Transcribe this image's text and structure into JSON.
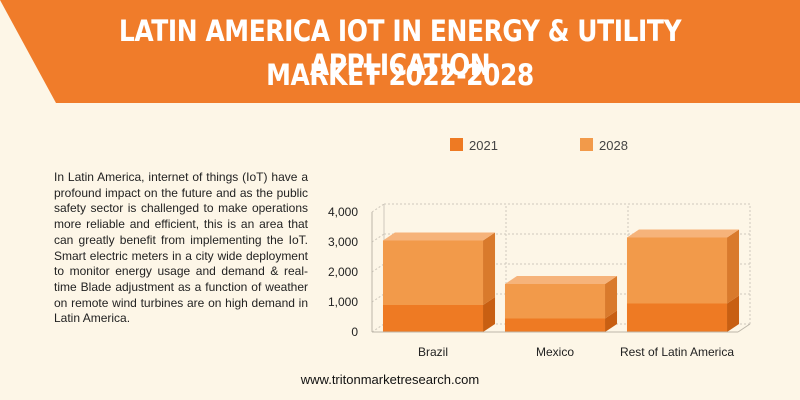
{
  "title": {
    "line1": "LATIN AMERICA IOT IN ENERGY & UTILITY APPLICATION",
    "line2": "MARKET 2022-2028"
  },
  "description": "In Latin America, internet of things (IoT) have a profound impact on the future and as the public safety sector is challenged to make operations more reliable and efficient, this is an area that can greatly benefit from implementing the IoT. Smart electric meters in a city wide deployment to monitor energy usage and demand & real-time Blade adjustment as a function of weather on remote wind turbines are on high demand in Latin America.",
  "website": "www.tritonmarketresearch.com",
  "colors": {
    "banner": "#f07c2a",
    "background": "#fdf6e7",
    "series_2021": "#ee7a23",
    "series_2028": "#f29a4a"
  },
  "chart_data": {
    "type": "bar",
    "stacked": true,
    "three_d": true,
    "categories": [
      "Brazil",
      "Mexico",
      "Rest of Latin America"
    ],
    "series": [
      {
        "name": "2021",
        "values": [
          900,
          450,
          950
        ]
      },
      {
        "name": "2028",
        "values": [
          2150,
          1150,
          2200
        ]
      }
    ],
    "ylim": [
      0,
      4000
    ],
    "yticks": [
      "0",
      "1,000",
      "2,000",
      "3,000",
      "4,000"
    ],
    "ytick_values": [
      0,
      1000,
      2000,
      3000,
      4000
    ],
    "grid": true,
    "legend_position": "top"
  }
}
